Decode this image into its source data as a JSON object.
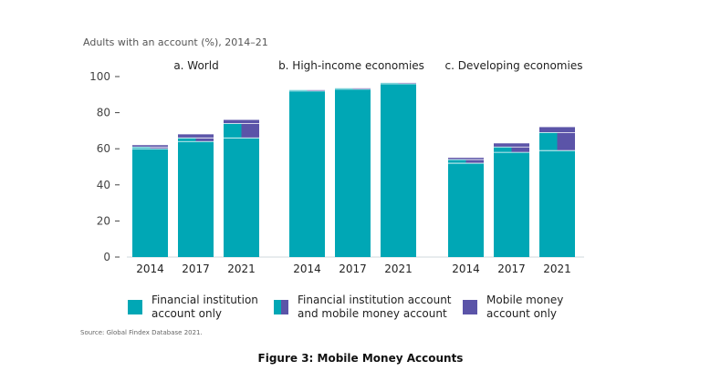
{
  "chart_data": {
    "type": "bar",
    "stacked": true,
    "title": "Adults with an account (%), 2014–21",
    "ylim": [
      0,
      100
    ],
    "yticks": [
      0,
      20,
      40,
      60,
      80,
      100
    ],
    "grid": false,
    "legend_placement": "bottom",
    "colors": {
      "fi_only": "#00a7b5",
      "fi_and_mm": "#00a7b5",
      "mm_only": "#5b54a8"
    },
    "series_keys": [
      "fi_only",
      "fi_and_mm",
      "mm_only"
    ],
    "panels": [
      {
        "title": "a. World",
        "categories": [
          "2014",
          "2017",
          "2021"
        ],
        "series": [
          {
            "key": "fi_only",
            "values": [
              60,
              64,
              66
            ]
          },
          {
            "key": "fi_and_mm",
            "values": [
              1,
              2,
              8
            ]
          },
          {
            "key": "mm_only",
            "values": [
              1,
              2,
              2
            ]
          }
        ]
      },
      {
        "title": "b. High-income economies",
        "categories": [
          "2014",
          "2017",
          "2021"
        ],
        "series": [
          {
            "key": "fi_only",
            "values": [
              92,
              93,
              96
            ]
          },
          {
            "key": "fi_and_mm",
            "values": [
              0.5,
              0.5,
              0.5
            ]
          },
          {
            "key": "mm_only",
            "values": [
              0,
              0,
              0
            ]
          }
        ]
      },
      {
        "title": "c. Developing economies",
        "categories": [
          "2014",
          "2017",
          "2021"
        ],
        "series": [
          {
            "key": "fi_only",
            "values": [
              52,
              58,
              59
            ]
          },
          {
            "key": "fi_and_mm",
            "values": [
              2,
              3,
              10
            ]
          },
          {
            "key": "mm_only",
            "values": [
              1,
              2,
              3
            ]
          }
        ]
      }
    ]
  },
  "legend": [
    {
      "key": "fi_only",
      "label_line1": "Financial institution",
      "label_line2": "account only"
    },
    {
      "key": "fi_and_mm",
      "label_line1": "Financial institution account",
      "label_line2": "and mobile money account"
    },
    {
      "key": "mm_only",
      "label_line1": "Mobile money",
      "label_line2": "account only"
    }
  ],
  "source": "Source: Global Findex Database 2021.",
  "caption": "Figure 3: Mobile Money Accounts"
}
